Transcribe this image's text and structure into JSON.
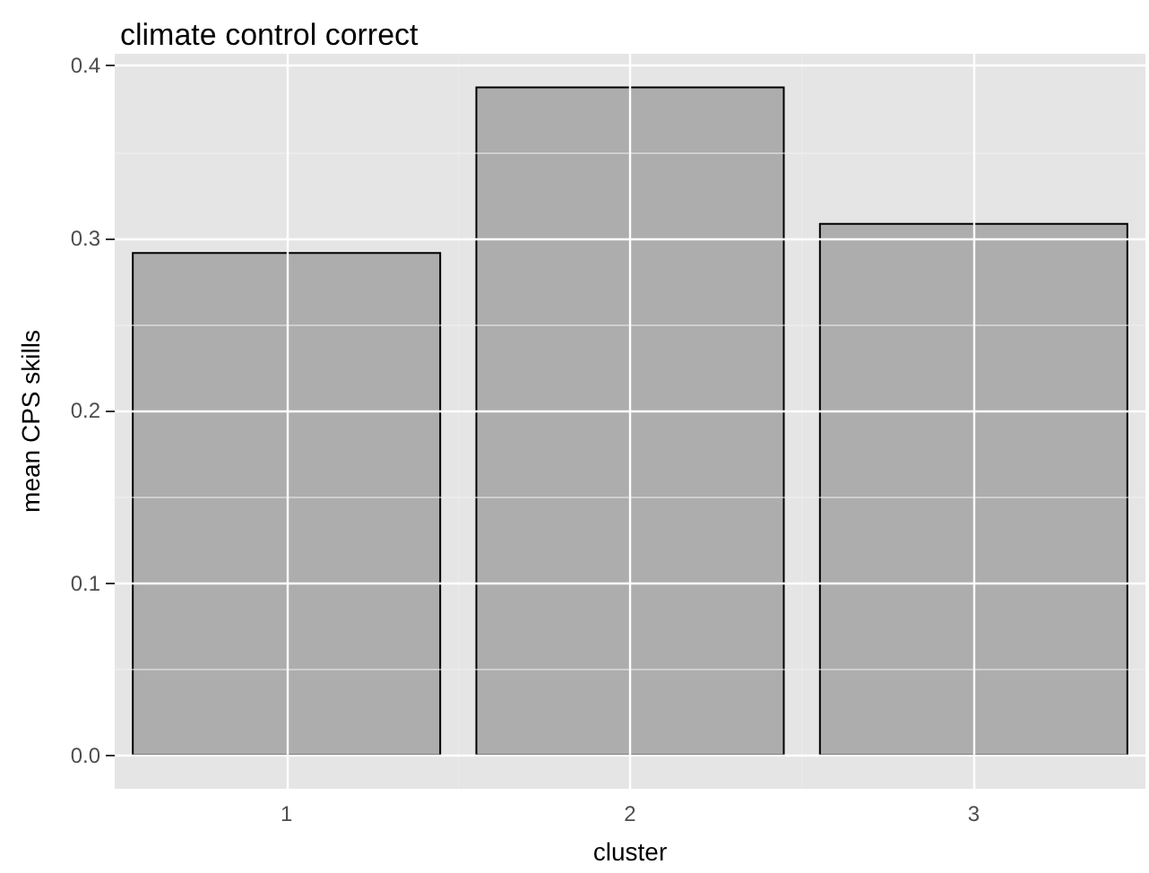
{
  "chart_data": {
    "type": "bar",
    "title": "climate control correct",
    "xlabel": "cluster",
    "ylabel": "mean CPS skills",
    "categories": [
      "1",
      "2",
      "3"
    ],
    "values": [
      0.292,
      0.388,
      0.309
    ],
    "color": "#adadad",
    "ylim": [
      -0.019,
      0.407
    ],
    "yticks": [
      {
        "value": 0,
        "label": "0.0"
      },
      0.1,
      0.2,
      0.3,
      0.4
    ],
    "grid": true
  }
}
